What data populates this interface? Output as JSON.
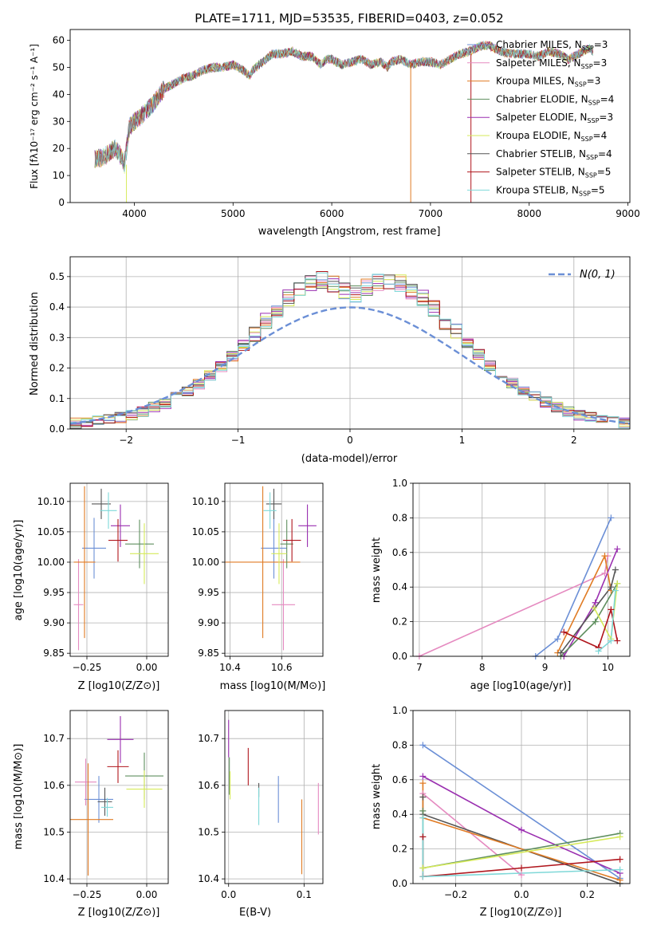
{
  "figure": {
    "title": "PLATE=1711, MJD=53535, FIBERID=0403, z=0.052"
  },
  "colors": {
    "chabrier_miles": "#6b8fd6",
    "salpeter_miles": "#e58ac0",
    "kroupa_miles": "#e07b24",
    "chabrier_elodie": "#5f8f5f",
    "salpeter_elodie": "#9a2fb0",
    "kroupa_elodie": "#d6ea5a",
    "chabrier_stelib": "#555555",
    "salpeter_stelib": "#b0161d",
    "kroupa_stelib": "#7fd8d8",
    "normal_curve": "#6b8fd6",
    "grid": "#b0b0b0"
  },
  "chart_data": [
    {
      "id": "spectrum",
      "type": "line",
      "title": "PLATE=1711, MJD=53535, FIBERID=0403, z=0.052",
      "xlabel": "wavelength [Angstrom, rest frame]",
      "ylabel": "Flux [fλ10⁻¹⁷ erg cm⁻² s⁻¹ A⁻¹]",
      "xlim": [
        3350,
        9020
      ],
      "ylim": [
        0,
        64
      ],
      "xticks": [
        4000,
        5000,
        6000,
        7000,
        8000,
        9000
      ],
      "yticks": [
        0,
        10,
        20,
        30,
        40,
        50,
        60
      ],
      "grid": false,
      "legend_position": "right",
      "spectrum_points": [
        [
          3600,
          16
        ],
        [
          3700,
          17
        ],
        [
          3800,
          20
        ],
        [
          3850,
          18
        ],
        [
          3900,
          14
        ],
        [
          3950,
          28
        ],
        [
          4000,
          30
        ],
        [
          4100,
          33
        ],
        [
          4200,
          37
        ],
        [
          4300,
          42
        ],
        [
          4400,
          44
        ],
        [
          4500,
          46
        ],
        [
          4600,
          47
        ],
        [
          4700,
          49
        ],
        [
          4800,
          50
        ],
        [
          4900,
          50
        ],
        [
          5000,
          51
        ],
        [
          5100,
          49
        ],
        [
          5170,
          47
        ],
        [
          5200,
          49
        ],
        [
          5300,
          52
        ],
        [
          5400,
          55
        ],
        [
          5500,
          55
        ],
        [
          5600,
          56
        ],
        [
          5700,
          54
        ],
        [
          5800,
          54
        ],
        [
          5890,
          51
        ],
        [
          5950,
          53
        ],
        [
          6000,
          53
        ],
        [
          6100,
          51
        ],
        [
          6200,
          52
        ],
        [
          6300,
          53
        ],
        [
          6400,
          51
        ],
        [
          6500,
          52
        ],
        [
          6563,
          50
        ],
        [
          6600,
          52
        ],
        [
          6700,
          53
        ],
        [
          6800,
          51
        ],
        [
          6900,
          52
        ],
        [
          7000,
          52
        ],
        [
          7100,
          51
        ],
        [
          7200,
          53
        ],
        [
          7300,
          55
        ],
        [
          7400,
          56
        ],
        [
          7500,
          58
        ],
        [
          7600,
          58
        ],
        [
          7700,
          56
        ],
        [
          7800,
          55
        ],
        [
          7900,
          55
        ],
        [
          8000,
          55
        ],
        [
          8100,
          54
        ],
        [
          8200,
          56
        ],
        [
          8300,
          55
        ],
        [
          8400,
          53
        ],
        [
          8500,
          55
        ],
        [
          8600,
          57
        ],
        [
          8650,
          56
        ]
      ],
      "series": [
        {
          "name": "Chabrier MILES, N_SSP=3",
          "color_key": "chabrier_miles"
        },
        {
          "name": "Salpeter MILES, N_SSP=3",
          "color_key": "salpeter_miles"
        },
        {
          "name": "Kroupa MILES, N_SSP=3",
          "color_key": "kroupa_miles"
        },
        {
          "name": "Chabrier ELODIE, N_SSP=4",
          "color_key": "chabrier_elodie"
        },
        {
          "name": "Salpeter ELODIE, N_SSP=3",
          "color_key": "salpeter_elodie"
        },
        {
          "name": "Kroupa ELODIE, N_SSP=4",
          "color_key": "kroupa_elodie"
        },
        {
          "name": "Chabrier STELIB, N_SSP=4",
          "color_key": "chabrier_stelib"
        },
        {
          "name": "Salpeter STELIB, N_SSP=5",
          "color_key": "salpeter_stelib"
        },
        {
          "name": "Kroupa STELIB, N_SSP=5",
          "color_key": "kroupa_stelib"
        }
      ]
    },
    {
      "id": "residuals",
      "type": "line",
      "xlabel": "(data-model)/error",
      "ylabel": "Normed distribution",
      "xlim": [
        -2.5,
        2.5
      ],
      "ylim": [
        0,
        0.565
      ],
      "xticks": [
        -2,
        -1,
        0,
        1,
        2
      ],
      "yticks": [
        0.0,
        0.1,
        0.2,
        0.3,
        0.4,
        0.5
      ],
      "grid": true,
      "legend_position": "top-right",
      "legend": "N(0, 1)",
      "bin_width": 0.1,
      "bin_start": -2.5,
      "hist_base": [
        0.018,
        0.021,
        0.026,
        0.031,
        0.038,
        0.047,
        0.058,
        0.07,
        0.085,
        0.103,
        0.124,
        0.148,
        0.175,
        0.205,
        0.238,
        0.274,
        0.312,
        0.35,
        0.389,
        0.428,
        0.46,
        0.48,
        0.487,
        0.478,
        0.455,
        0.445,
        0.462,
        0.478,
        0.486,
        0.477,
        0.455,
        0.426,
        0.391,
        0.354,
        0.316,
        0.279,
        0.243,
        0.209,
        0.178,
        0.151,
        0.126,
        0.105,
        0.087,
        0.071,
        0.058,
        0.047,
        0.038,
        0.031,
        0.025,
        0.02
      ]
    },
    {
      "id": "z-age",
      "type": "scatter",
      "xlabel": "Z [log10(Z/Z⊙)]",
      "ylabel": "age  [log10(age/yr)]",
      "xlim": [
        -0.32,
        0.09
      ],
      "ylim": [
        9.845,
        10.13
      ],
      "xticks": [
        -0.25,
        0.0
      ],
      "xtick_labels": [
        "−0.25",
        "0.00"
      ],
      "yticks": [
        9.85,
        9.9,
        9.95,
        10.0,
        10.05,
        10.1
      ],
      "grid": true,
      "points": [
        {
          "color_key": "chabrier_miles",
          "x": -0.22,
          "y": 10.023,
          "xerr": 0.05,
          "yerr": 0.05
        },
        {
          "color_key": "salpeter_miles",
          "x": -0.285,
          "y": 9.93,
          "xerr": 0.02,
          "yerr": 0.075
        },
        {
          "color_key": "kroupa_miles",
          "x": -0.26,
          "y": 10.0,
          "xerr": 0.045,
          "yerr": 0.125
        },
        {
          "color_key": "chabrier_elodie",
          "x": -0.03,
          "y": 10.03,
          "xerr": 0.06,
          "yerr": 0.04
        },
        {
          "color_key": "salpeter_elodie",
          "x": -0.11,
          "y": 10.06,
          "xerr": 0.04,
          "yerr": 0.035
        },
        {
          "color_key": "kroupa_elodie",
          "x": -0.01,
          "y": 10.014,
          "xerr": 0.06,
          "yerr": 0.05
        },
        {
          "color_key": "chabrier_stelib",
          "x": -0.19,
          "y": 10.096,
          "xerr": 0.04,
          "yerr": 0.025
        },
        {
          "color_key": "salpeter_stelib",
          "x": -0.12,
          "y": 10.036,
          "xerr": 0.04,
          "yerr": 0.035
        },
        {
          "color_key": "kroupa_stelib",
          "x": -0.16,
          "y": 10.085,
          "xerr": 0.035,
          "yerr": 0.03
        }
      ]
    },
    {
      "id": "mass-age",
      "type": "scatter",
      "xlabel": "mass [log10(M/M⊙)]",
      "ylabel": "",
      "xlim": [
        10.38,
        10.76
      ],
      "ylim": [
        9.845,
        10.13
      ],
      "xticks": [
        10.4,
        10.6
      ],
      "yticks": [
        9.85,
        9.9,
        9.95,
        10.0,
        10.05,
        10.1
      ],
      "grid": true,
      "points": [
        {
          "color_key": "chabrier_miles",
          "x": 10.57,
          "y": 10.023,
          "xerr": 0.05,
          "yerr": 0.05
        },
        {
          "color_key": "salpeter_miles",
          "x": 10.607,
          "y": 9.93,
          "xerr": 0.045,
          "yerr": 0.075
        },
        {
          "color_key": "kroupa_miles",
          "x": 10.527,
          "y": 10.0,
          "xerr": 0.145,
          "yerr": 0.125
        },
        {
          "color_key": "chabrier_elodie",
          "x": 10.62,
          "y": 10.03,
          "xerr": 0.025,
          "yerr": 0.04
        },
        {
          "color_key": "salpeter_elodie",
          "x": 10.7,
          "y": 10.06,
          "xerr": 0.035,
          "yerr": 0.035
        },
        {
          "color_key": "kroupa_elodie",
          "x": 10.59,
          "y": 10.014,
          "xerr": 0.03,
          "yerr": 0.05
        },
        {
          "color_key": "chabrier_stelib",
          "x": 10.57,
          "y": 10.096,
          "xerr": 0.03,
          "yerr": 0.025
        },
        {
          "color_key": "salpeter_stelib",
          "x": 10.64,
          "y": 10.036,
          "xerr": 0.035,
          "yerr": 0.035
        },
        {
          "color_key": "kroupa_stelib",
          "x": 10.555,
          "y": 10.085,
          "xerr": 0.025,
          "yerr": 0.03
        }
      ]
    },
    {
      "id": "age-weight",
      "type": "line",
      "xlabel": "age  [log10(age/yr)]",
      "ylabel": "mass weight",
      "xlim": [
        6.9,
        10.35
      ],
      "ylim": [
        0,
        1
      ],
      "xticks": [
        7,
        8,
        9,
        10
      ],
      "yticks": [
        0.0,
        0.2,
        0.4,
        0.6,
        0.8,
        1.0
      ],
      "grid": true,
      "series": [
        {
          "color_key": "salpeter_miles",
          "points": [
            [
              7.0,
              0.0
            ],
            [
              9.95,
              0.48
            ],
            [
              10.0,
              0.58
            ]
          ]
        },
        {
          "color_key": "chabrier_miles",
          "points": [
            [
              8.85,
              0.0
            ],
            [
              9.2,
              0.1
            ],
            [
              10.05,
              0.8
            ]
          ]
        },
        {
          "color_key": "kroupa_miles",
          "points": [
            [
              9.2,
              0.02
            ],
            [
              9.95,
              0.58
            ],
            [
              10.05,
              0.38
            ]
          ]
        },
        {
          "color_key": "salpeter_elodie",
          "points": [
            [
              9.3,
              0.0
            ],
            [
              9.8,
              0.31
            ],
            [
              10.15,
              0.62
            ]
          ]
        },
        {
          "color_key": "chabrier_elodie",
          "points": [
            [
              9.25,
              0.0
            ],
            [
              9.8,
              0.2
            ],
            [
              10.15,
              0.42
            ]
          ]
        },
        {
          "color_key": "kroupa_elodie",
          "points": [
            [
              9.78,
              0.28
            ],
            [
              10.05,
              0.1
            ],
            [
              10.15,
              0.42
            ]
          ]
        },
        {
          "color_key": "chabrier_stelib",
          "points": [
            [
              9.25,
              0.02
            ],
            [
              10.05,
              0.4
            ],
            [
              10.12,
              0.5
            ]
          ]
        },
        {
          "color_key": "salpeter_stelib",
          "points": [
            [
              9.3,
              0.14
            ],
            [
              9.85,
              0.05
            ],
            [
              10.05,
              0.27
            ],
            [
              10.15,
              0.09
            ]
          ]
        },
        {
          "color_key": "kroupa_stelib",
          "points": [
            [
              9.85,
              0.03
            ],
            [
              10.05,
              0.09
            ],
            [
              10.12,
              0.38
            ]
          ]
        }
      ]
    },
    {
      "id": "z-mass",
      "type": "scatter",
      "xlabel": "Z [log10(Z/Z⊙)]",
      "ylabel": "mass [log10(M/M⊙)]",
      "xlim": [
        -0.32,
        0.09
      ],
      "ylim": [
        10.39,
        10.76
      ],
      "xticks": [
        -0.25,
        0.0
      ],
      "xtick_labels": [
        "−0.25",
        "0.00"
      ],
      "yticks": [
        10.4,
        10.5,
        10.6,
        10.7
      ],
      "grid": true,
      "points": [
        {
          "color_key": "chabrier_miles",
          "x": -0.2,
          "y": 10.57,
          "xerr": 0.06,
          "yerr": 0.05
        },
        {
          "color_key": "salpeter_miles",
          "x": -0.255,
          "y": 10.607,
          "xerr": 0.045,
          "yerr": 0.05
        },
        {
          "color_key": "kroupa_miles",
          "x": -0.245,
          "y": 10.527,
          "xerr": 0.105,
          "yerr": 0.12
        },
        {
          "color_key": "chabrier_elodie",
          "x": -0.01,
          "y": 10.62,
          "xerr": 0.08,
          "yerr": 0.05
        },
        {
          "color_key": "salpeter_elodie",
          "x": -0.11,
          "y": 10.698,
          "xerr": 0.055,
          "yerr": 0.05
        },
        {
          "color_key": "kroupa_elodie",
          "x": -0.01,
          "y": 10.592,
          "xerr": 0.075,
          "yerr": 0.04
        },
        {
          "color_key": "chabrier_stelib",
          "x": -0.175,
          "y": 10.565,
          "xerr": 0.03,
          "yerr": 0.03
        },
        {
          "color_key": "salpeter_stelib",
          "x": -0.12,
          "y": 10.64,
          "xerr": 0.045,
          "yerr": 0.035
        },
        {
          "color_key": "kroupa_stelib",
          "x": -0.165,
          "y": 10.553,
          "xerr": 0.025,
          "yerr": 0.02
        }
      ]
    },
    {
      "id": "ebv-mass",
      "type": "scatter",
      "xlabel": "E(B-V)",
      "ylabel": "",
      "xlim": [
        -0.005,
        0.125
      ],
      "ylim": [
        10.39,
        10.76
      ],
      "xticks": [
        0.0,
        0.1
      ],
      "yticks": [
        10.4,
        10.5,
        10.6,
        10.7
      ],
      "grid": true,
      "points": [
        {
          "color_key": "chabrier_miles",
          "x": 0.066,
          "y": 10.57,
          "xerr": 0.0,
          "yerr": 0.05
        },
        {
          "color_key": "salpeter_miles",
          "x": 0.119,
          "y": 10.55,
          "xerr": 0.0,
          "yerr": 0.055
        },
        {
          "color_key": "kroupa_miles",
          "x": 0.097,
          "y": 10.49,
          "xerr": 0.0,
          "yerr": 0.08
        },
        {
          "color_key": "chabrier_elodie",
          "x": 0.001,
          "y": 10.62,
          "xerr": 0.0,
          "yerr": 0.04
        },
        {
          "color_key": "salpeter_elodie",
          "x": 0.0,
          "y": 10.7,
          "xerr": 0.0,
          "yerr": 0.04
        },
        {
          "color_key": "kroupa_elodie",
          "x": 0.002,
          "y": 10.6,
          "xerr": 0.0,
          "yerr": 0.03
        },
        {
          "color_key": "chabrier_stelib",
          "x": 0.04,
          "y": 10.59,
          "xerr": 0.0,
          "yerr": 0.015
        },
        {
          "color_key": "salpeter_stelib",
          "x": 0.026,
          "y": 10.64,
          "xerr": 0.0,
          "yerr": 0.04
        },
        {
          "color_key": "kroupa_stelib",
          "x": 0.04,
          "y": 10.555,
          "xerr": 0.0,
          "yerr": 0.04
        }
      ]
    },
    {
      "id": "z-weight",
      "type": "line",
      "xlabel": "Z [log10(Z/Z⊙)]",
      "ylabel": "mass weight",
      "xlim": [
        -0.33,
        0.33
      ],
      "ylim": [
        0,
        1
      ],
      "xticks": [
        -0.2,
        0.0,
        0.2
      ],
      "xtick_labels": [
        "−0.2",
        "0.0",
        "0.2"
      ],
      "yticks": [
        0.0,
        0.2,
        0.4,
        0.6,
        0.8,
        1.0
      ],
      "grid": true,
      "series": [
        {
          "color_key": "chabrier_miles",
          "points": [
            [
              -0.3,
              0.8
            ],
            [
              0.3,
              0.03
            ]
          ]
        },
        {
          "color_key": "salpeter_elodie",
          "points": [
            [
              -0.3,
              0.62
            ],
            [
              0.0,
              0.31
            ],
            [
              0.3,
              0.06
            ]
          ]
        },
        {
          "color_key": "salpeter_miles",
          "points": [
            [
              -0.3,
              0.52
            ],
            [
              0.0,
              0.05
            ]
          ]
        },
        {
          "color_key": "chabrier_stelib",
          "points": [
            [
              -0.3,
              0.5
            ],
            [
              -0.3,
              0.4
            ],
            [
              0.3,
              0.0
            ]
          ]
        },
        {
          "color_key": "kroupa_miles",
          "points": [
            [
              -0.3,
              0.58
            ],
            [
              -0.3,
              0.38
            ],
            [
              0.3,
              0.02
            ]
          ]
        },
        {
          "color_key": "chabrier_elodie",
          "points": [
            [
              -0.3,
              0.42
            ],
            [
              -0.3,
              0.09
            ],
            [
              0.3,
              0.29
            ]
          ]
        },
        {
          "color_key": "kroupa_elodie",
          "points": [
            [
              -0.3,
              0.09
            ],
            [
              0.3,
              0.27
            ]
          ]
        },
        {
          "color_key": "salpeter_stelib",
          "points": [
            [
              -0.3,
              0.27
            ],
            [
              -0.3,
              0.04
            ],
            [
              0.0,
              0.09
            ],
            [
              0.3,
              0.14
            ]
          ]
        },
        {
          "color_key": "kroupa_stelib",
          "points": [
            [
              -0.3,
              0.38
            ],
            [
              -0.3,
              0.04
            ],
            [
              0.3,
              0.08
            ]
          ]
        }
      ]
    }
  ]
}
